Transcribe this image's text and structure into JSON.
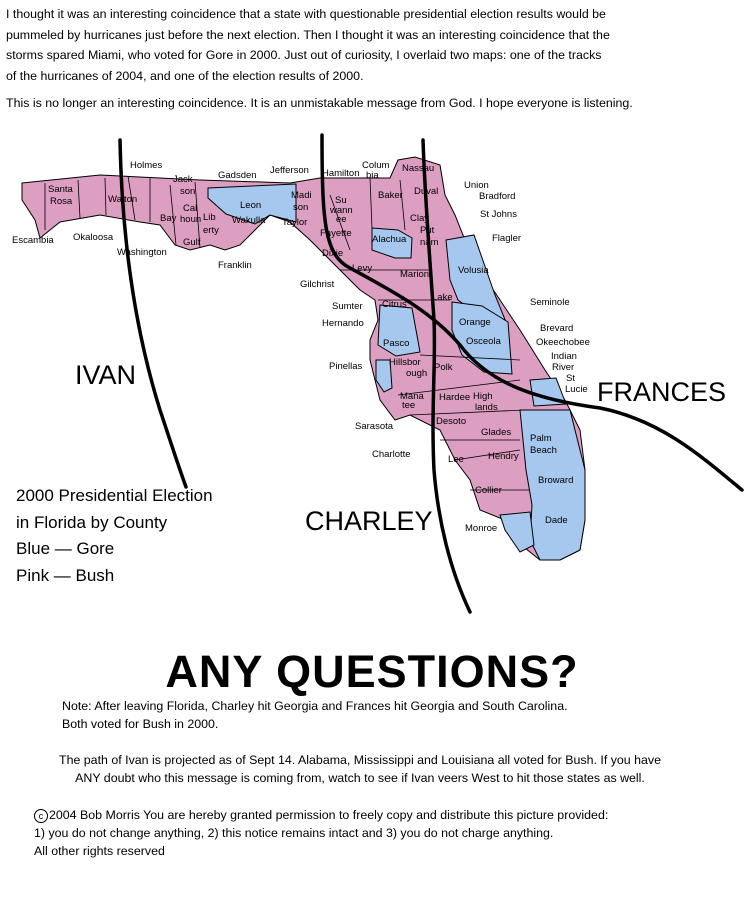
{
  "intro": [
    "I thought it was an interesting coincidence that a state with questionable presidential election results would be",
    "pummeled by hurricanes just before the next election. Then I thought it was an interesting coincidence that the",
    "storms spared Miami, who voted for Gore in 2000.  Just out of curiosity, I overlaid two maps: one of the tracks",
    "of the hurricanes of 2004, and one of the election results of 2000."
  ],
  "message": "This is no longer an interesting coincidence. It is an unmistakable message from God.  I hope everyone is listening.",
  "colors": {
    "gore": "#a6c8ef",
    "bush": "#dc9fc1",
    "track": "#000000"
  },
  "storms": {
    "ivan": "IVAN",
    "charley": "CHARLEY",
    "frances": "FRANCES"
  },
  "legend": [
    "2000 Presidential Election",
    "in Florida by County",
    "Blue — Gore",
    "Pink — Bush"
  ],
  "headline": "ANY QUESTIONS?",
  "note": [
    "Note: After leaving Florida, Charley hit Georgia and Frances hit Georgia and South Carolina.",
    "Both voted for Bush in 2000."
  ],
  "ivan_note": [
    "The path of Ivan is projected as of Sept 14. Alabama, Mississippi and Louisiana all voted for Bush. If you have",
    "ANY doubt who this message is coming from, watch to see if Ivan veers West to hit those states as well."
  ],
  "copyright": {
    "symbol": "c",
    "lines": [
      "2004 Bob Morris You are hereby granted permission to freely copy and distribute this picture provided:",
      "1) you do not change anything, 2) this notice remains intact and 3) you do not charge anything.",
      "All other rights reserved"
    ]
  },
  "counties": {
    "escambia": "Escambia",
    "santa": "Santa",
    "rosa": "Rosa",
    "okaloosa": "Okaloosa",
    "walton": "Walton",
    "holmes": "Holmes",
    "washington": "Washington",
    "jack": "Jack",
    "son": "son",
    "bay": "Bay",
    "cal": "Cal",
    "houn": "houn",
    "lib": "Lib",
    "erty": "erty",
    "gulf": "Gulf",
    "gadsden": "Gadsden",
    "leon": "Leon",
    "wakulla": "Wakulla",
    "franklin": "Franklin",
    "jefferson": "Jefferson",
    "madi": "Madi",
    "madison_son": "son",
    "taylor": "Taylor",
    "hamilton": "Hamilton",
    "colum": "Colum",
    "bia": "bia",
    "su": "Su",
    "wann": "wann",
    "ee": "ee",
    "baker": "Baker",
    "nassau": "Nassau",
    "duval": "Duval",
    "union": "Union",
    "bradford": "Bradford",
    "st_johns": "St Johns",
    "clay": "Clay",
    "fayette": "Fayette",
    "dixie": "Dixie",
    "gilchrist": "Gilchrist",
    "levy": "Levy",
    "alachua": "Alachua",
    "put": "Put",
    "nam": "nam",
    "flagler": "Flagler",
    "marion": "Marion",
    "volusia": "Volusia",
    "lake": "Lake",
    "citrus": "Citrus",
    "sumter": "Sumter",
    "hernando": "Hernando",
    "seminole": "Seminole",
    "orange": "Orange",
    "brevard": "Brevard",
    "pasco": "Pasco",
    "osceola": "Osceola",
    "okeechobee": "Okeechobee",
    "indian": "Indian",
    "river": "River",
    "pinellas": "Pinellas",
    "hillsbor": "Hillsbor",
    "ough": "ough",
    "polk": "Polk",
    "st": "St",
    "lucie": "Lucie",
    "mana": "Mana",
    "tee": "tee",
    "hardee": "Hardee",
    "high": "High",
    "lands": "lands",
    "sarasota": "Sarasota",
    "desoto": "Desoto",
    "glades": "Glades",
    "palm": "Palm",
    "beach": "Beach",
    "charlotte": "Charlotte",
    "lee": "Lee",
    "hendry": "Hendry",
    "broward": "Broward",
    "collier": "Collier",
    "dade": "Dade",
    "monroe": "Monroe"
  }
}
